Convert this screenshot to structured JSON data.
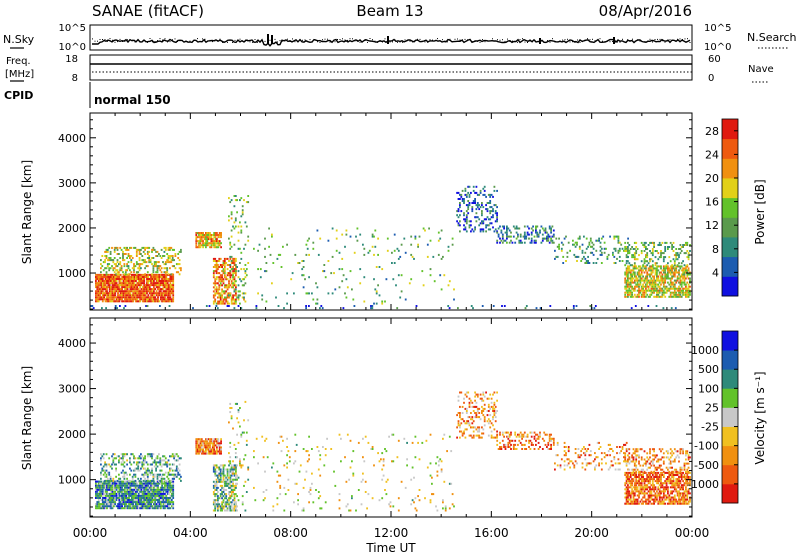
{
  "header": {
    "station": "SANAE (fitACF)",
    "beam": "Beam 13",
    "date": "08/Apr/2016"
  },
  "top_panels": {
    "nsky_label": "N.Sky",
    "nsearch_label": "N.Search",
    "nsky_ticks": [
      "10^5",
      "10^0"
    ],
    "nsearch_ticks": [
      "10^5",
      "10^0"
    ],
    "freq_label": "Freq.",
    "freq_unit": "[MHz]",
    "freq_ticks": [
      "18",
      "8"
    ],
    "nave_label": "Nave",
    "nave_ticks": [
      "60",
      "0"
    ],
    "cpid_label": "CPID",
    "cpid_value": "normal 150"
  },
  "colors": {
    "power": [
      "#1010e0",
      "#1c5cb0",
      "#2e8a7a",
      "#5a9a4c",
      "#62c22a",
      "#e2d018",
      "#f09010",
      "#ee5a10",
      "#e01a10"
    ],
    "velocity": [
      "#e01a10",
      "#ee5a10",
      "#f09010",
      "#f0c020",
      "#c8c8c8",
      "#62c22a",
      "#2e8a7a",
      "#1c5cb0",
      "#1010e0"
    ]
  },
  "chart_data": [
    {
      "type": "heatmap",
      "panel": "power",
      "ylabel": "Slant Range [km]",
      "xlabel": "Time UT",
      "x_ticks": [
        "00:00",
        "04:00",
        "08:00",
        "12:00",
        "16:00",
        "20:00",
        "00:00"
      ],
      "xlim_hours": [
        0,
        24
      ],
      "y_ticks": [
        1000,
        2000,
        3000,
        4000
      ],
      "ylim": [
        180,
        4550
      ],
      "colorbar_label": "Power [dB]",
      "colorbar_ticks": [
        "4",
        "8",
        "12",
        "16",
        "20",
        "24",
        "28"
      ],
      "colorbar_range": [
        0,
        30
      ],
      "regions": [
        {
          "t": [
            0.2,
            3.3
          ],
          "r": [
            350,
            950
          ],
          "level": 0.85,
          "density": 0.9
        },
        {
          "t": [
            0.4,
            3.6
          ],
          "r": [
            950,
            1550
          ],
          "level": 0.55,
          "density": 0.35
        },
        {
          "t": [
            4.2,
            5.2
          ],
          "r": [
            1550,
            1900
          ],
          "level": 0.7,
          "density": 0.8
        },
        {
          "t": [
            4.9,
            5.8
          ],
          "r": [
            300,
            1300
          ],
          "level": 0.75,
          "density": 0.6
        },
        {
          "t": [
            5.5,
            6.3
          ],
          "r": [
            300,
            2700
          ],
          "level": 0.45,
          "density": 0.12
        },
        {
          "t": [
            6.5,
            14.5
          ],
          "r": [
            300,
            2000
          ],
          "level": 0.4,
          "density": 0.035
        },
        {
          "t": [
            14.6,
            16.2
          ],
          "r": [
            1900,
            2900
          ],
          "level": 0.2,
          "density": 0.25
        },
        {
          "t": [
            16.2,
            18.5
          ],
          "r": [
            1650,
            2050
          ],
          "level": 0.25,
          "density": 0.35
        },
        {
          "t": [
            18.5,
            21.5
          ],
          "r": [
            1200,
            1800
          ],
          "level": 0.35,
          "density": 0.18
        },
        {
          "t": [
            21.3,
            23.9
          ],
          "r": [
            450,
            1150
          ],
          "level": 0.6,
          "density": 0.7
        },
        {
          "t": [
            21.3,
            23.9
          ],
          "r": [
            1150,
            1650
          ],
          "level": 0.45,
          "density": 0.3
        },
        {
          "t": [
            0,
            24
          ],
          "r": [
            200,
            290
          ],
          "level": 0.15,
          "density": 0.06
        }
      ]
    },
    {
      "type": "heatmap",
      "panel": "velocity",
      "ylabel": "Slant Range [km]",
      "xlabel": "Time UT",
      "x_ticks": [
        "00:00",
        "04:00",
        "08:00",
        "12:00",
        "16:00",
        "20:00",
        "00:00"
      ],
      "xlim_hours": [
        0,
        24
      ],
      "y_ticks": [
        1000,
        2000,
        3000,
        4000
      ],
      "ylim": [
        180,
        4550
      ],
      "colorbar_label": "Velocity [m s⁻¹]",
      "colorbar_ticks": [
        "-1000",
        "-500",
        "-100",
        "-25",
        "25",
        "100",
        "500",
        "1000"
      ],
      "colorbar_range": [
        -1200,
        1200
      ],
      "regions": [
        {
          "t": [
            0.2,
            3.3
          ],
          "r": [
            350,
            950
          ],
          "level": 0.72,
          "density": 0.9
        },
        {
          "t": [
            0.4,
            3.6
          ],
          "r": [
            950,
            1550
          ],
          "level": 0.65,
          "density": 0.35
        },
        {
          "t": [
            4.2,
            5.2
          ],
          "r": [
            1550,
            1900
          ],
          "level": 0.25,
          "density": 0.8
        },
        {
          "t": [
            4.9,
            5.8
          ],
          "r": [
            300,
            1300
          ],
          "level": 0.6,
          "density": 0.6
        },
        {
          "t": [
            5.5,
            6.3
          ],
          "r": [
            300,
            2700
          ],
          "level": 0.5,
          "density": 0.12
        },
        {
          "t": [
            6.5,
            14.5
          ],
          "r": [
            300,
            2000
          ],
          "level": 0.45,
          "density": 0.035
        },
        {
          "t": [
            14.6,
            16.2
          ],
          "r": [
            1900,
            2900
          ],
          "level": 0.3,
          "density": 0.25
        },
        {
          "t": [
            16.2,
            18.5
          ],
          "r": [
            1650,
            2050
          ],
          "level": 0.25,
          "density": 0.35
        },
        {
          "t": [
            18.5,
            21.5
          ],
          "r": [
            1200,
            1800
          ],
          "level": 0.3,
          "density": 0.18
        },
        {
          "t": [
            21.3,
            23.9
          ],
          "r": [
            450,
            1150
          ],
          "level": 0.2,
          "density": 0.7
        },
        {
          "t": [
            21.3,
            23.9
          ],
          "r": [
            1150,
            1650
          ],
          "level": 0.3,
          "density": 0.3
        }
      ]
    }
  ]
}
